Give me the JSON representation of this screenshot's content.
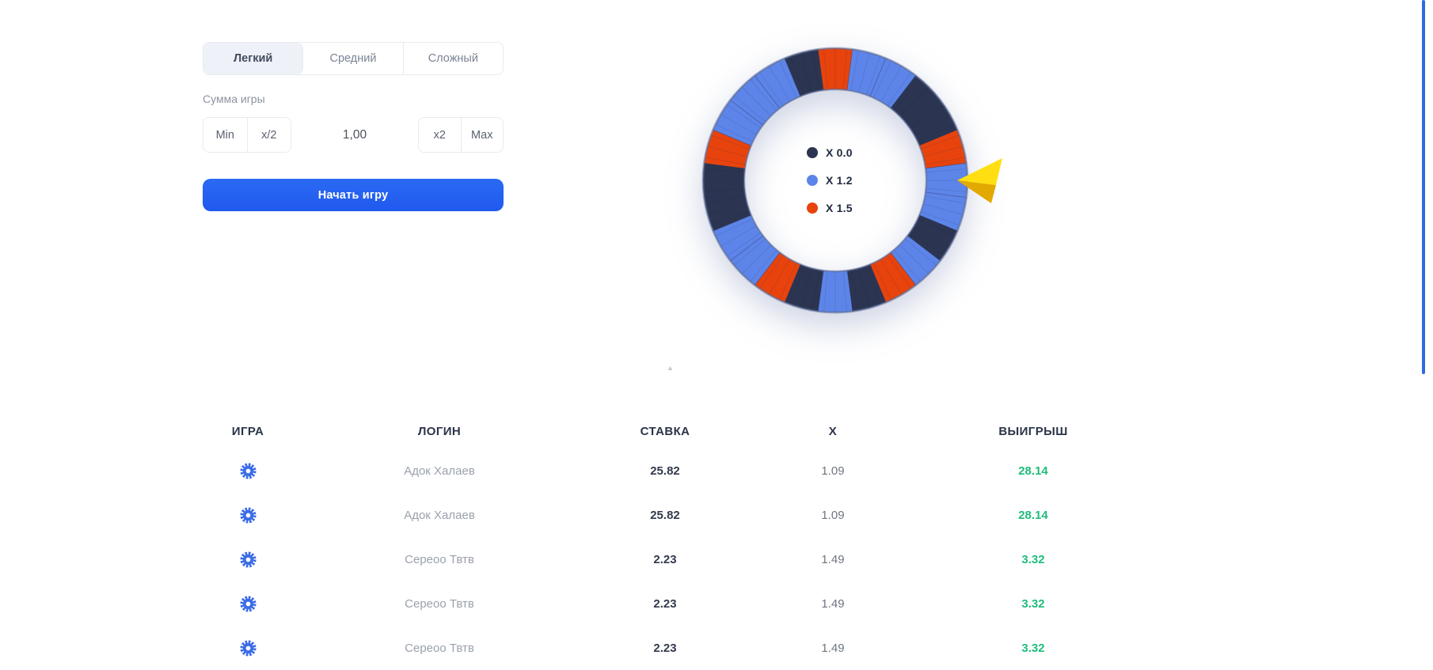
{
  "difficulty_tabs": [
    {
      "label": "Легкий",
      "active": true
    },
    {
      "label": "Средний",
      "active": false
    },
    {
      "label": "Сложный",
      "active": false
    }
  ],
  "bet_panel": {
    "amount_label": "Сумма игры",
    "min_label": "Min",
    "half_label": "x/2",
    "amount_value": "1,00",
    "double_label": "x2",
    "max_label": "Max",
    "start_label": "Начать игру"
  },
  "wheel": {
    "legend": [
      {
        "label": "X 0.0",
        "color": "#2b3450"
      },
      {
        "label": "X 1.2",
        "color": "#5d85e9"
      },
      {
        "label": "X 1.5",
        "color": "#e8430d"
      }
    ],
    "segment_palette": {
      "dark": "#2b3450",
      "blue": "#5d85e9",
      "orange": "#e8430d"
    },
    "segments": [
      "orange",
      "blue",
      "blue",
      "dark",
      "dark",
      "orange",
      "blue",
      "blue",
      "dark",
      "blue",
      "orange",
      "dark",
      "blue",
      "dark",
      "orange",
      "blue",
      "blue",
      "dark",
      "dark",
      "orange",
      "blue",
      "blue",
      "blue",
      "dark"
    ],
    "pointer_colors": {
      "top": "#ffdf12",
      "bottom": "#e2a900"
    }
  },
  "history_table": {
    "columns": [
      "ИГРА",
      "ЛОГИН",
      "СТАВКА",
      "X",
      "ВЫИГРЫШ"
    ],
    "rows": [
      {
        "login": "Адок Халаев",
        "bet": "25.82",
        "multiplier": "1.09",
        "win": "28.14"
      },
      {
        "login": "Адок Халаев",
        "bet": "25.82",
        "multiplier": "1.09",
        "win": "28.14"
      },
      {
        "login": "Сереоо Твтв",
        "bet": "2.23",
        "multiplier": "1.49",
        "win": "3.32"
      },
      {
        "login": "Сереоо Твтв",
        "bet": "2.23",
        "multiplier": "1.49",
        "win": "3.32"
      },
      {
        "login": "Сереоо Твтв",
        "bet": "2.23",
        "multiplier": "1.49",
        "win": "3.32"
      }
    ],
    "win_color": "#1fbd7a",
    "game_icon_color": "#3c6ce7"
  },
  "misc": {
    "scroll_hint_icon": "▲"
  }
}
